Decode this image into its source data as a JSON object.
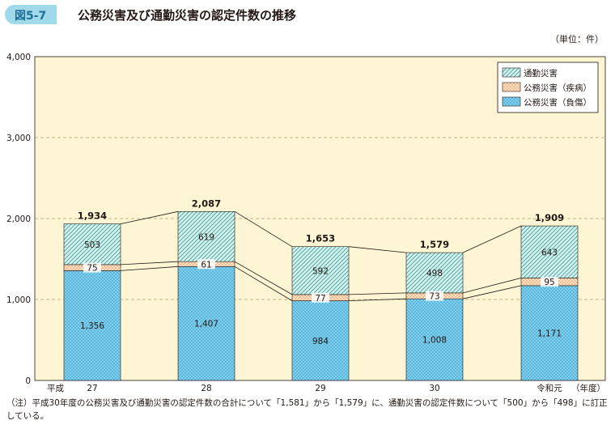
{
  "figure": {
    "number": "図5-7",
    "title": "公務災害及び通勤災害の認定件数の推移",
    "unit": "（単位：件）",
    "note": "（注）平成30年度の公務災害及び通勤災害の認定件数の合計について「1,581」から「1,579」に、通勤災害の認定件数について「500」から「498」に訂正している。"
  },
  "colors": {
    "plot_bg": "#fdf5d3",
    "grid": "#b89a6e",
    "injury_fill": "#7fd0ec",
    "injury_dot": "#2d8fc4",
    "disease_fill": "#fbe0c4",
    "disease_dot": "#e48a4a",
    "commute_fill": "#d9f0ee",
    "commute_dot": "#3aa59a"
  },
  "chart_data": {
    "type": "bar",
    "stacked": true,
    "title": "公務災害及び通勤災害の認定件数の推移",
    "era_label": "平成",
    "xlabel": "（年度）",
    "ylabel": "",
    "categories": [
      "27",
      "28",
      "29",
      "30",
      "令和元"
    ],
    "ylim": [
      0,
      4000
    ],
    "yticks": [
      0,
      1000,
      2000,
      3000,
      4000
    ],
    "ytick_labels": [
      "0",
      "1,000",
      "2,000",
      "3,000",
      "4,000"
    ],
    "grid": true,
    "legend_position": "top-right",
    "series": [
      {
        "name": "公務災害（負傷）",
        "values": [
          1356,
          1407,
          984,
          1008,
          1171
        ],
        "labels": [
          "1,356",
          "1,407",
          "984",
          "1,008",
          "1,171"
        ]
      },
      {
        "name": "公務災害（疾病）",
        "values": [
          75,
          61,
          77,
          73,
          95
        ],
        "labels": [
          "75",
          "61",
          "77",
          "73",
          "95"
        ]
      },
      {
        "name": "通勤災害",
        "values": [
          503,
          619,
          592,
          498,
          643
        ],
        "labels": [
          "503",
          "619",
          "592",
          "498",
          "643"
        ]
      }
    ],
    "legend_order": [
      "通勤災害",
      "公務災害（疾病）",
      "公務災害（負傷）"
    ],
    "totals": [
      1934,
      2087,
      1653,
      1579,
      1909
    ],
    "total_labels": [
      "1,934",
      "2,087",
      "1,653",
      "1,579",
      "1,909"
    ]
  }
}
